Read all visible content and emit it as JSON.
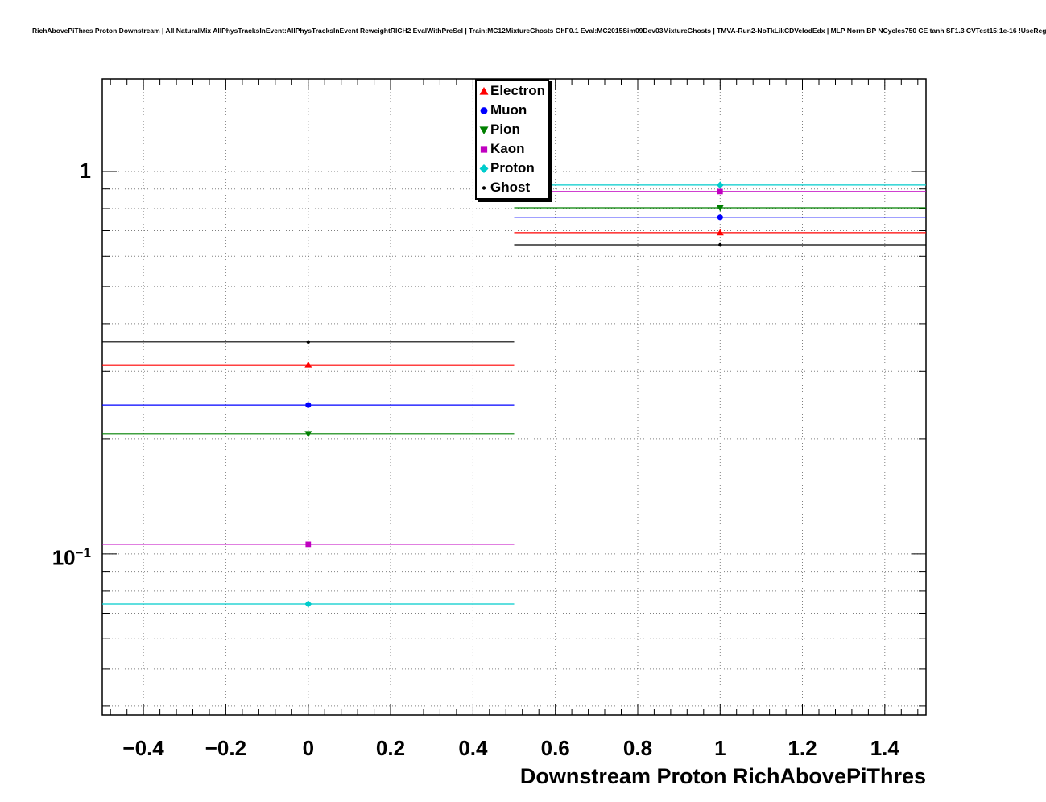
{
  "header": {
    "title": "RichAbovePiThres Proton Downstream | All NaturalMix AllPhysTracksInEvent:AllPhysTracksInEvent ReweightRICH2 EvalWithPreSel | Train:MC12MixtureGhosts GhF0.1 Eval:MC2015Sim09Dev03MixtureGhosts | TMVA-Run2-NoTkLikCDVelodEdx | MLP Norm BP NCycles750 CE tanh SF1.3 CVTest15:1e-16 !UseReg"
  },
  "chart_data": {
    "type": "scatter",
    "title": "",
    "xlabel": "Downstream Proton RichAbovePiThres",
    "ylabel": "",
    "x_scale": "linear",
    "y_scale": "log",
    "xlim": [
      -0.5,
      1.5
    ],
    "ylim": [
      0.0379,
      1.746
    ],
    "grid": true,
    "legend_position": "top-inside",
    "x_ticks": [
      -0.4,
      -0.2,
      0,
      0.2,
      0.4,
      0.6,
      0.8,
      1,
      1.2,
      1.4
    ],
    "x_tick_labels": [
      "−0.4",
      "−0.2",
      "0",
      "0.2",
      "0.4",
      "0.6",
      "0.8",
      "1",
      "1.2",
      "1.4"
    ],
    "y_major_ticks": [
      1,
      0.1
    ],
    "y_axis_labels": [
      {
        "value": 1,
        "text": "1",
        "sup": ""
      },
      {
        "value": 0.1,
        "text": "10",
        "sup": "−1"
      }
    ],
    "series": [
      {
        "name": "Electron",
        "color": "#ff0000",
        "marker": "triangle-up",
        "points": [
          {
            "x": 0,
            "xlow": -0.5,
            "xhigh": 0.5,
            "y": 0.312
          },
          {
            "x": 1,
            "xlow": 0.5,
            "xhigh": 1.5,
            "y": 0.692
          }
        ]
      },
      {
        "name": "Muon",
        "color": "#0000ff",
        "marker": "circle",
        "points": [
          {
            "x": 0,
            "xlow": -0.5,
            "xhigh": 0.5,
            "y": 0.245
          },
          {
            "x": 1,
            "xlow": 0.5,
            "xhigh": 1.5,
            "y": 0.759
          }
        ]
      },
      {
        "name": "Pion",
        "color": "#008000",
        "marker": "triangle-down",
        "points": [
          {
            "x": 0,
            "xlow": -0.5,
            "xhigh": 0.5,
            "y": 0.206
          },
          {
            "x": 1,
            "xlow": 0.5,
            "xhigh": 1.5,
            "y": 0.804
          }
        ]
      },
      {
        "name": "Kaon",
        "color": "#c000c0",
        "marker": "square",
        "points": [
          {
            "x": 0,
            "xlow": -0.5,
            "xhigh": 0.5,
            "y": 0.106
          },
          {
            "x": 1,
            "xlow": 0.5,
            "xhigh": 1.5,
            "y": 0.886
          }
        ]
      },
      {
        "name": "Proton",
        "color": "#00cccc",
        "marker": "diamond",
        "points": [
          {
            "x": 0,
            "xlow": -0.5,
            "xhigh": 0.5,
            "y": 0.074
          },
          {
            "x": 1,
            "xlow": 0.5,
            "xhigh": 1.5,
            "y": 0.921
          }
        ]
      },
      {
        "name": "Ghost",
        "color": "#000000",
        "marker": "dot",
        "points": [
          {
            "x": 0,
            "xlow": -0.5,
            "xhigh": 0.5,
            "y": 0.358
          },
          {
            "x": 1,
            "xlow": 0.5,
            "xhigh": 1.5,
            "y": 0.643
          }
        ]
      }
    ]
  }
}
